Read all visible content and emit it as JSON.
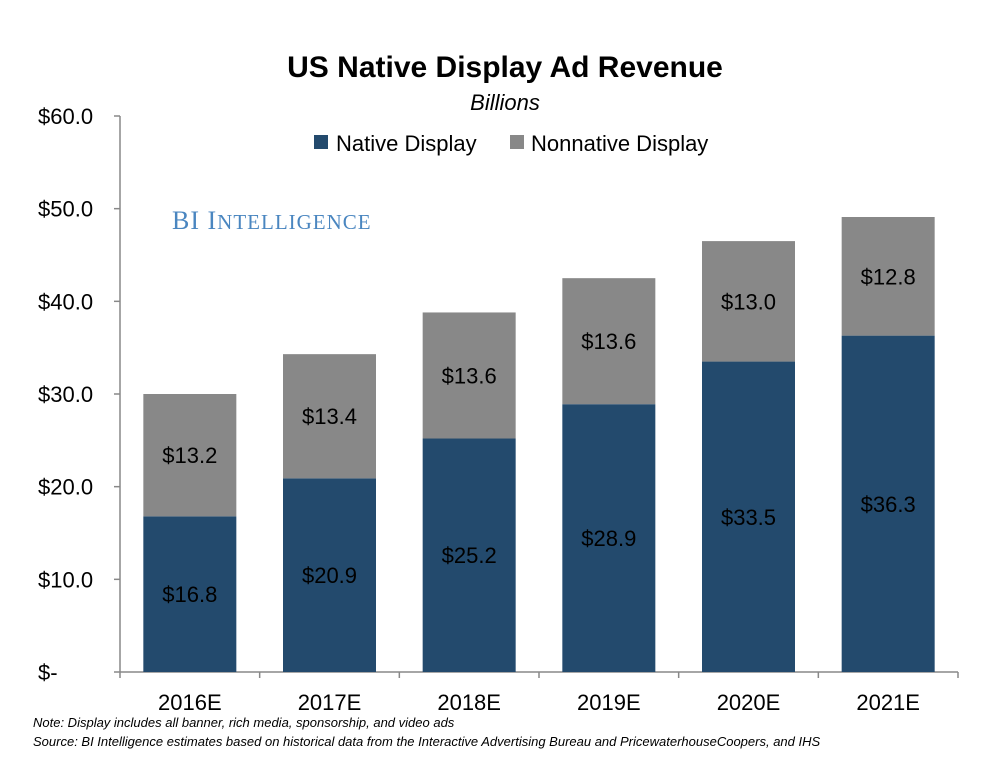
{
  "chart_data": {
    "type": "bar",
    "stacked": true,
    "title": "US Native Display Ad Revenue",
    "subtitle": "Billions",
    "categories": [
      "2016E",
      "2017E",
      "2018E",
      "2019E",
      "2020E",
      "2021E"
    ],
    "series": [
      {
        "name": "Native Display",
        "color": "#234a6d",
        "values": [
          16.8,
          20.9,
          25.2,
          28.9,
          33.5,
          36.3
        ],
        "labels": [
          "$16.8",
          "$20.9",
          "$25.2",
          "$28.9",
          "$33.5",
          "$36.3"
        ]
      },
      {
        "name": "Nonnative Display",
        "color": "#888888",
        "values": [
          13.2,
          13.4,
          13.6,
          13.6,
          13.0,
          12.8
        ],
        "labels": [
          "$13.2",
          "$13.4",
          "$13.6",
          "$13.6",
          "$13.0",
          "$12.8"
        ]
      }
    ],
    "ylim": [
      0,
      60
    ],
    "yticks": [
      0,
      10,
      20,
      30,
      40,
      50,
      60
    ],
    "ytick_labels": [
      "$-",
      "$10.0",
      "$20.0",
      "$30.0",
      "$40.0",
      "$50.0",
      "$60.0"
    ],
    "grid": false,
    "legend_position": "top-center"
  },
  "watermark": {
    "text": "BI Intelligence",
    "color": "#4a86c0"
  },
  "notes": {
    "note": "Note: Display includes all banner, rich media, sponsorship, and video ads",
    "source": "Source: BI Intelligence estimates based on historical data from the Interactive Advertising Bureau and PricewaterhouseCoopers, and IHS"
  }
}
